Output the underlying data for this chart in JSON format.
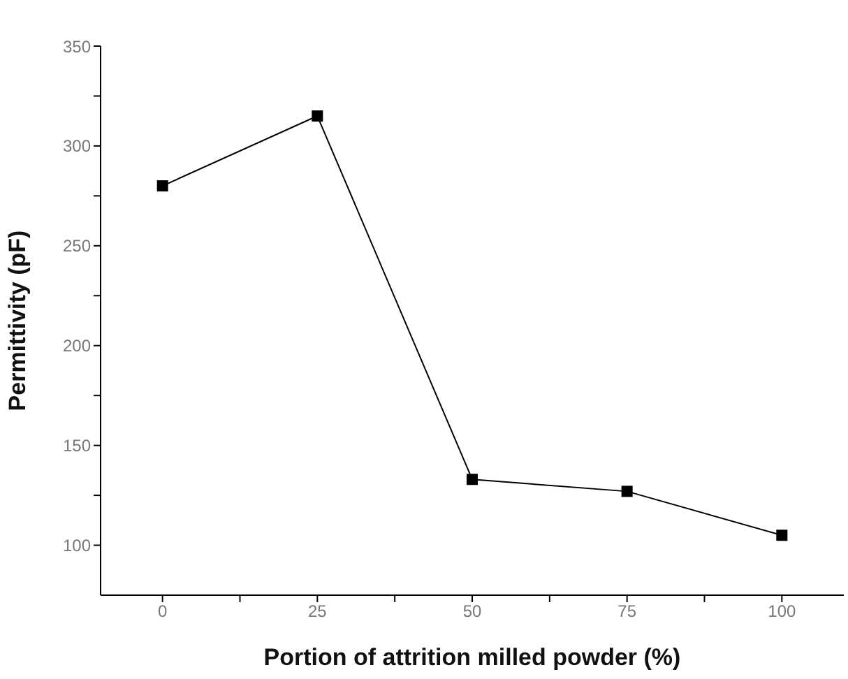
{
  "chart_data": {
    "type": "line",
    "xlabel": "Portion of attrition milled powder (%)",
    "ylabel": "Permittivity (pF)",
    "x": [
      0,
      25,
      50,
      75,
      100
    ],
    "series": [
      {
        "color": "#000000",
        "values": [
          280,
          315,
          133,
          127,
          105
        ]
      }
    ],
    "xlim": [
      -10,
      110
    ],
    "xticks": [
      0,
      {
        "value": 12.5,
        "label": null
      },
      25,
      {
        "value": 37.5,
        "label": null
      },
      50,
      {
        "value": 62.5,
        "label": null
      },
      75,
      {
        "value": 87.5,
        "label": null
      },
      100
    ],
    "ylim": [
      75,
      350
    ],
    "yticks": [
      100,
      {
        "value": 125,
        "label": null
      },
      150,
      {
        "value": 175,
        "label": null
      },
      200,
      {
        "value": 225,
        "label": null
      },
      250,
      {
        "value": 275,
        "label": null
      },
      300,
      {
        "value": 325,
        "label": null
      },
      350
    ],
    "marker": "square",
    "line_style": "solid",
    "grid": false,
    "legend": false
  }
}
